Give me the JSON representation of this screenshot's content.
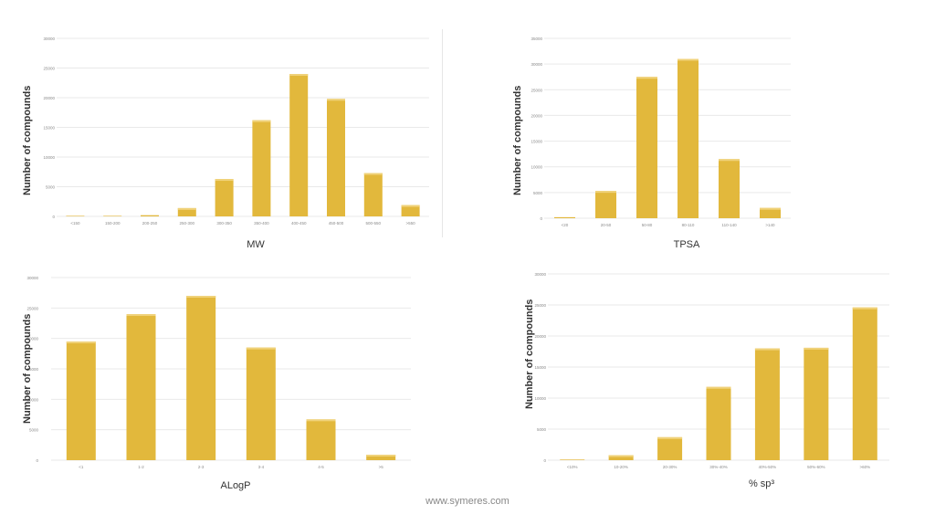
{
  "theme": {
    "bar_color": "#e2b83c",
    "bar_top": "#f0d27a",
    "grid_color": "#e9e9e9",
    "tick_color": "#8a8a8a"
  },
  "footer": {
    "text": "www.symeres.com"
  },
  "chart_data": [
    {
      "id": "mw",
      "type": "bar",
      "xlabel": "MW",
      "ylabel": "Number of compounds",
      "ylim": [
        0,
        30000
      ],
      "yticks": [
        0,
        5000,
        10000,
        15000,
        20000,
        25000,
        30000
      ],
      "categories": [
        "<150",
        "150-200",
        "200-250",
        "250-300",
        "300-350",
        "350-400",
        "400-450",
        "450-500",
        "500-550",
        ">550"
      ],
      "values": [
        0,
        0,
        200,
        1400,
        6300,
        16200,
        24000,
        19800,
        7300,
        1900
      ],
      "grid": true,
      "legend": "none"
    },
    {
      "id": "tpsa",
      "type": "bar",
      "xlabel": "TPSA",
      "ylabel": "Number of compounds",
      "ylim": [
        0,
        35000
      ],
      "yticks": [
        0,
        5000,
        10000,
        15000,
        20000,
        25000,
        30000,
        35000
      ],
      "categories": [
        "<20",
        "20-50",
        "50-80",
        "80-110",
        "110-140",
        ">140"
      ],
      "values": [
        200,
        5300,
        27500,
        31000,
        11500,
        2000
      ],
      "grid": true,
      "legend": "none"
    },
    {
      "id": "alogp",
      "type": "bar",
      "xlabel": "ALogP",
      "ylabel": "Number of compounds",
      "ylim": [
        0,
        30000
      ],
      "yticks": [
        0,
        5000,
        10000,
        15000,
        20000,
        25000,
        30000
      ],
      "categories": [
        "<1",
        "1-2",
        "2-3",
        "3-4",
        "4-5",
        ">5"
      ],
      "values": [
        19500,
        24000,
        27000,
        18500,
        6700,
        900
      ],
      "grid": true,
      "legend": "none"
    },
    {
      "id": "sp3",
      "type": "bar",
      "xlabel": "% sp³",
      "ylabel": "Number of compounds",
      "ylim": [
        0,
        30000
      ],
      "yticks": [
        0,
        5000,
        10000,
        15000,
        20000,
        25000,
        30000
      ],
      "categories": [
        "<10%",
        "10-20%",
        "20-30%",
        "30%-40%",
        "40%-50%",
        "50%-60%",
        ">60%"
      ],
      "values": [
        100,
        800,
        3700,
        11800,
        18000,
        18100,
        24600
      ],
      "grid": true,
      "legend": "none"
    }
  ]
}
